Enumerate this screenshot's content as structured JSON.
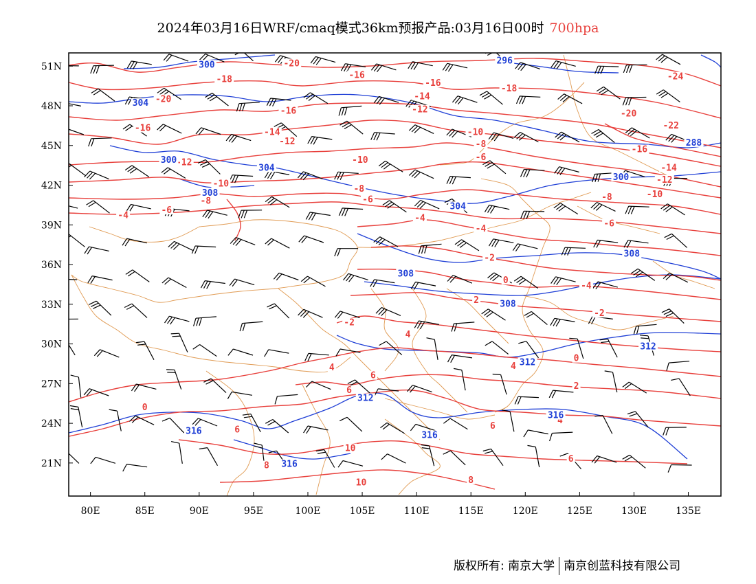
{
  "title": {
    "text": "2024年03月16日WRF/cmaq模式36km预报产品:03月16日00时",
    "level": "700hpa"
  },
  "axes": {
    "lon_ticks": [
      "80E",
      "85E",
      "90E",
      "95E",
      "100E",
      "105E",
      "110E",
      "115E",
      "120E",
      "125E",
      "130E",
      "135E"
    ],
    "lon_values": [
      80,
      85,
      90,
      95,
      100,
      105,
      110,
      115,
      120,
      125,
      130,
      135
    ],
    "lat_ticks": [
      "51N",
      "48N",
      "45N",
      "42N",
      "39N",
      "36N",
      "33N",
      "30N",
      "27N",
      "24N",
      "21N"
    ],
    "lat_values": [
      51,
      48,
      45,
      42,
      39,
      36,
      33,
      30,
      27,
      24,
      21
    ],
    "lon_range": [
      78,
      138
    ],
    "lat_range": [
      18.5,
      52
    ]
  },
  "colors": {
    "temperature": "#e8403c",
    "height": "#1f3fd6",
    "border": "#e09a52",
    "wind": "#000000"
  },
  "temperature_labels": [
    {
      "text": "-20",
      "lon": 98.5,
      "lat": 51.1
    },
    {
      "text": "-18",
      "lon": 92.3,
      "lat": 49.9
    },
    {
      "text": "-20",
      "lon": 86.7,
      "lat": 48.4
    },
    {
      "text": "-16",
      "lon": 84.8,
      "lat": 46.2
    },
    {
      "text": "-16",
      "lon": 98.2,
      "lat": 47.5
    },
    {
      "text": "-14",
      "lon": 96.7,
      "lat": 45.9
    },
    {
      "text": "-12",
      "lon": 98.1,
      "lat": 45.2
    },
    {
      "text": "-12",
      "lon": 88.6,
      "lat": 43.6
    },
    {
      "text": "-10",
      "lon": 92.0,
      "lat": 42.0
    },
    {
      "text": "-8",
      "lon": 90.6,
      "lat": 40.7
    },
    {
      "text": "-6",
      "lon": 87.0,
      "lat": 40.0
    },
    {
      "text": "-4",
      "lon": 83.0,
      "lat": 39.6
    },
    {
      "text": "-16",
      "lon": 104.5,
      "lat": 50.2
    },
    {
      "text": "-16",
      "lon": 111.5,
      "lat": 49.6
    },
    {
      "text": "-14",
      "lon": 110.5,
      "lat": 48.6
    },
    {
      "text": "-12",
      "lon": 110.3,
      "lat": 47.6
    },
    {
      "text": "-10",
      "lon": 104.8,
      "lat": 43.8
    },
    {
      "text": "-8",
      "lon": 104.7,
      "lat": 41.6
    },
    {
      "text": "-6",
      "lon": 105.5,
      "lat": 40.8
    },
    {
      "text": "-4",
      "lon": 110.3,
      "lat": 39.4
    },
    {
      "text": "-18",
      "lon": 118.5,
      "lat": 49.2
    },
    {
      "text": "-10",
      "lon": 115.4,
      "lat": 45.9
    },
    {
      "text": "-8",
      "lon": 115.9,
      "lat": 45.0
    },
    {
      "text": "-6",
      "lon": 115.9,
      "lat": 44.0
    },
    {
      "text": "-4",
      "lon": 115.9,
      "lat": 38.6
    },
    {
      "text": "-2",
      "lon": 116.7,
      "lat": 36.4
    },
    {
      "text": "0",
      "lon": 118.2,
      "lat": 34.7
    },
    {
      "text": "2",
      "lon": 115.5,
      "lat": 33.2
    },
    {
      "text": "-2",
      "lon": 103.8,
      "lat": 31.5
    },
    {
      "text": "4",
      "lon": 109.2,
      "lat": 30.6
    },
    {
      "text": "4",
      "lon": 102.2,
      "lat": 28.1
    },
    {
      "text": "6",
      "lon": 103.8,
      "lat": 26.4
    },
    {
      "text": "6",
      "lon": 106.0,
      "lat": 27.5
    },
    {
      "text": "0",
      "lon": 85.0,
      "lat": 25.1
    },
    {
      "text": "6",
      "lon": 93.5,
      "lat": 23.4
    },
    {
      "text": "8",
      "lon": 96.2,
      "lat": 20.7
    },
    {
      "text": "10",
      "lon": 103.9,
      "lat": 22.0
    },
    {
      "text": "10",
      "lon": 104.9,
      "lat": 19.4
    },
    {
      "text": "6",
      "lon": 117.0,
      "lat": 23.7
    },
    {
      "text": "8",
      "lon": 115.0,
      "lat": 19.6
    },
    {
      "text": "-24",
      "lon": 133.8,
      "lat": 50.1
    },
    {
      "text": "-20",
      "lon": 129.5,
      "lat": 47.3
    },
    {
      "text": "-22",
      "lon": 133.4,
      "lat": 46.4
    },
    {
      "text": "-16",
      "lon": 130.5,
      "lat": 44.6
    },
    {
      "text": "-14",
      "lon": 133.2,
      "lat": 43.2
    },
    {
      "text": "-12",
      "lon": 132.8,
      "lat": 42.3
    },
    {
      "text": "-10",
      "lon": 131.9,
      "lat": 41.2
    },
    {
      "text": "-8",
      "lon": 127.5,
      "lat": 41.0
    },
    {
      "text": "-6",
      "lon": 127.7,
      "lat": 39.0
    },
    {
      "text": "-4",
      "lon": 125.6,
      "lat": 34.3
    },
    {
      "text": "-2",
      "lon": 126.8,
      "lat": 32.2
    },
    {
      "text": "0",
      "lon": 124.7,
      "lat": 28.8
    },
    {
      "text": "2",
      "lon": 124.7,
      "lat": 26.7
    },
    {
      "text": "4",
      "lon": 123.2,
      "lat": 24.1
    },
    {
      "text": "6",
      "lon": 124.2,
      "lat": 21.2
    },
    {
      "text": "4",
      "lon": 118.9,
      "lat": 28.2
    }
  ],
  "height_labels": [
    {
      "text": "300",
      "lon": 90.7,
      "lat": 51.0
    },
    {
      "text": "304",
      "lon": 84.6,
      "lat": 48.1
    },
    {
      "text": "300",
      "lon": 87.2,
      "lat": 43.8
    },
    {
      "text": "304",
      "lon": 96.2,
      "lat": 43.2
    },
    {
      "text": "308",
      "lon": 91.0,
      "lat": 41.3
    },
    {
      "text": "296",
      "lon": 118.1,
      "lat": 51.3
    },
    {
      "text": "304",
      "lon": 113.8,
      "lat": 40.3
    },
    {
      "text": "308",
      "lon": 109.0,
      "lat": 35.2
    },
    {
      "text": "308",
      "lon": 118.4,
      "lat": 32.9
    },
    {
      "text": "312",
      "lon": 120.2,
      "lat": 28.5
    },
    {
      "text": "312",
      "lon": 105.3,
      "lat": 25.8
    },
    {
      "text": "316",
      "lon": 89.5,
      "lat": 23.3
    },
    {
      "text": "316",
      "lon": 111.2,
      "lat": 23.0
    },
    {
      "text": "316",
      "lon": 98.3,
      "lat": 20.8
    },
    {
      "text": "316",
      "lon": 122.8,
      "lat": 24.5
    },
    {
      "text": "312",
      "lon": 131.3,
      "lat": 29.7
    },
    {
      "text": "308",
      "lon": 129.8,
      "lat": 36.7
    },
    {
      "text": "300",
      "lon": 128.8,
      "lat": 42.5
    },
    {
      "text": "288",
      "lon": 135.5,
      "lat": 45.1
    }
  ],
  "footer": {
    "owner": "版权所有: 南京大学",
    "company": "南京创蓝科技有限公司"
  }
}
